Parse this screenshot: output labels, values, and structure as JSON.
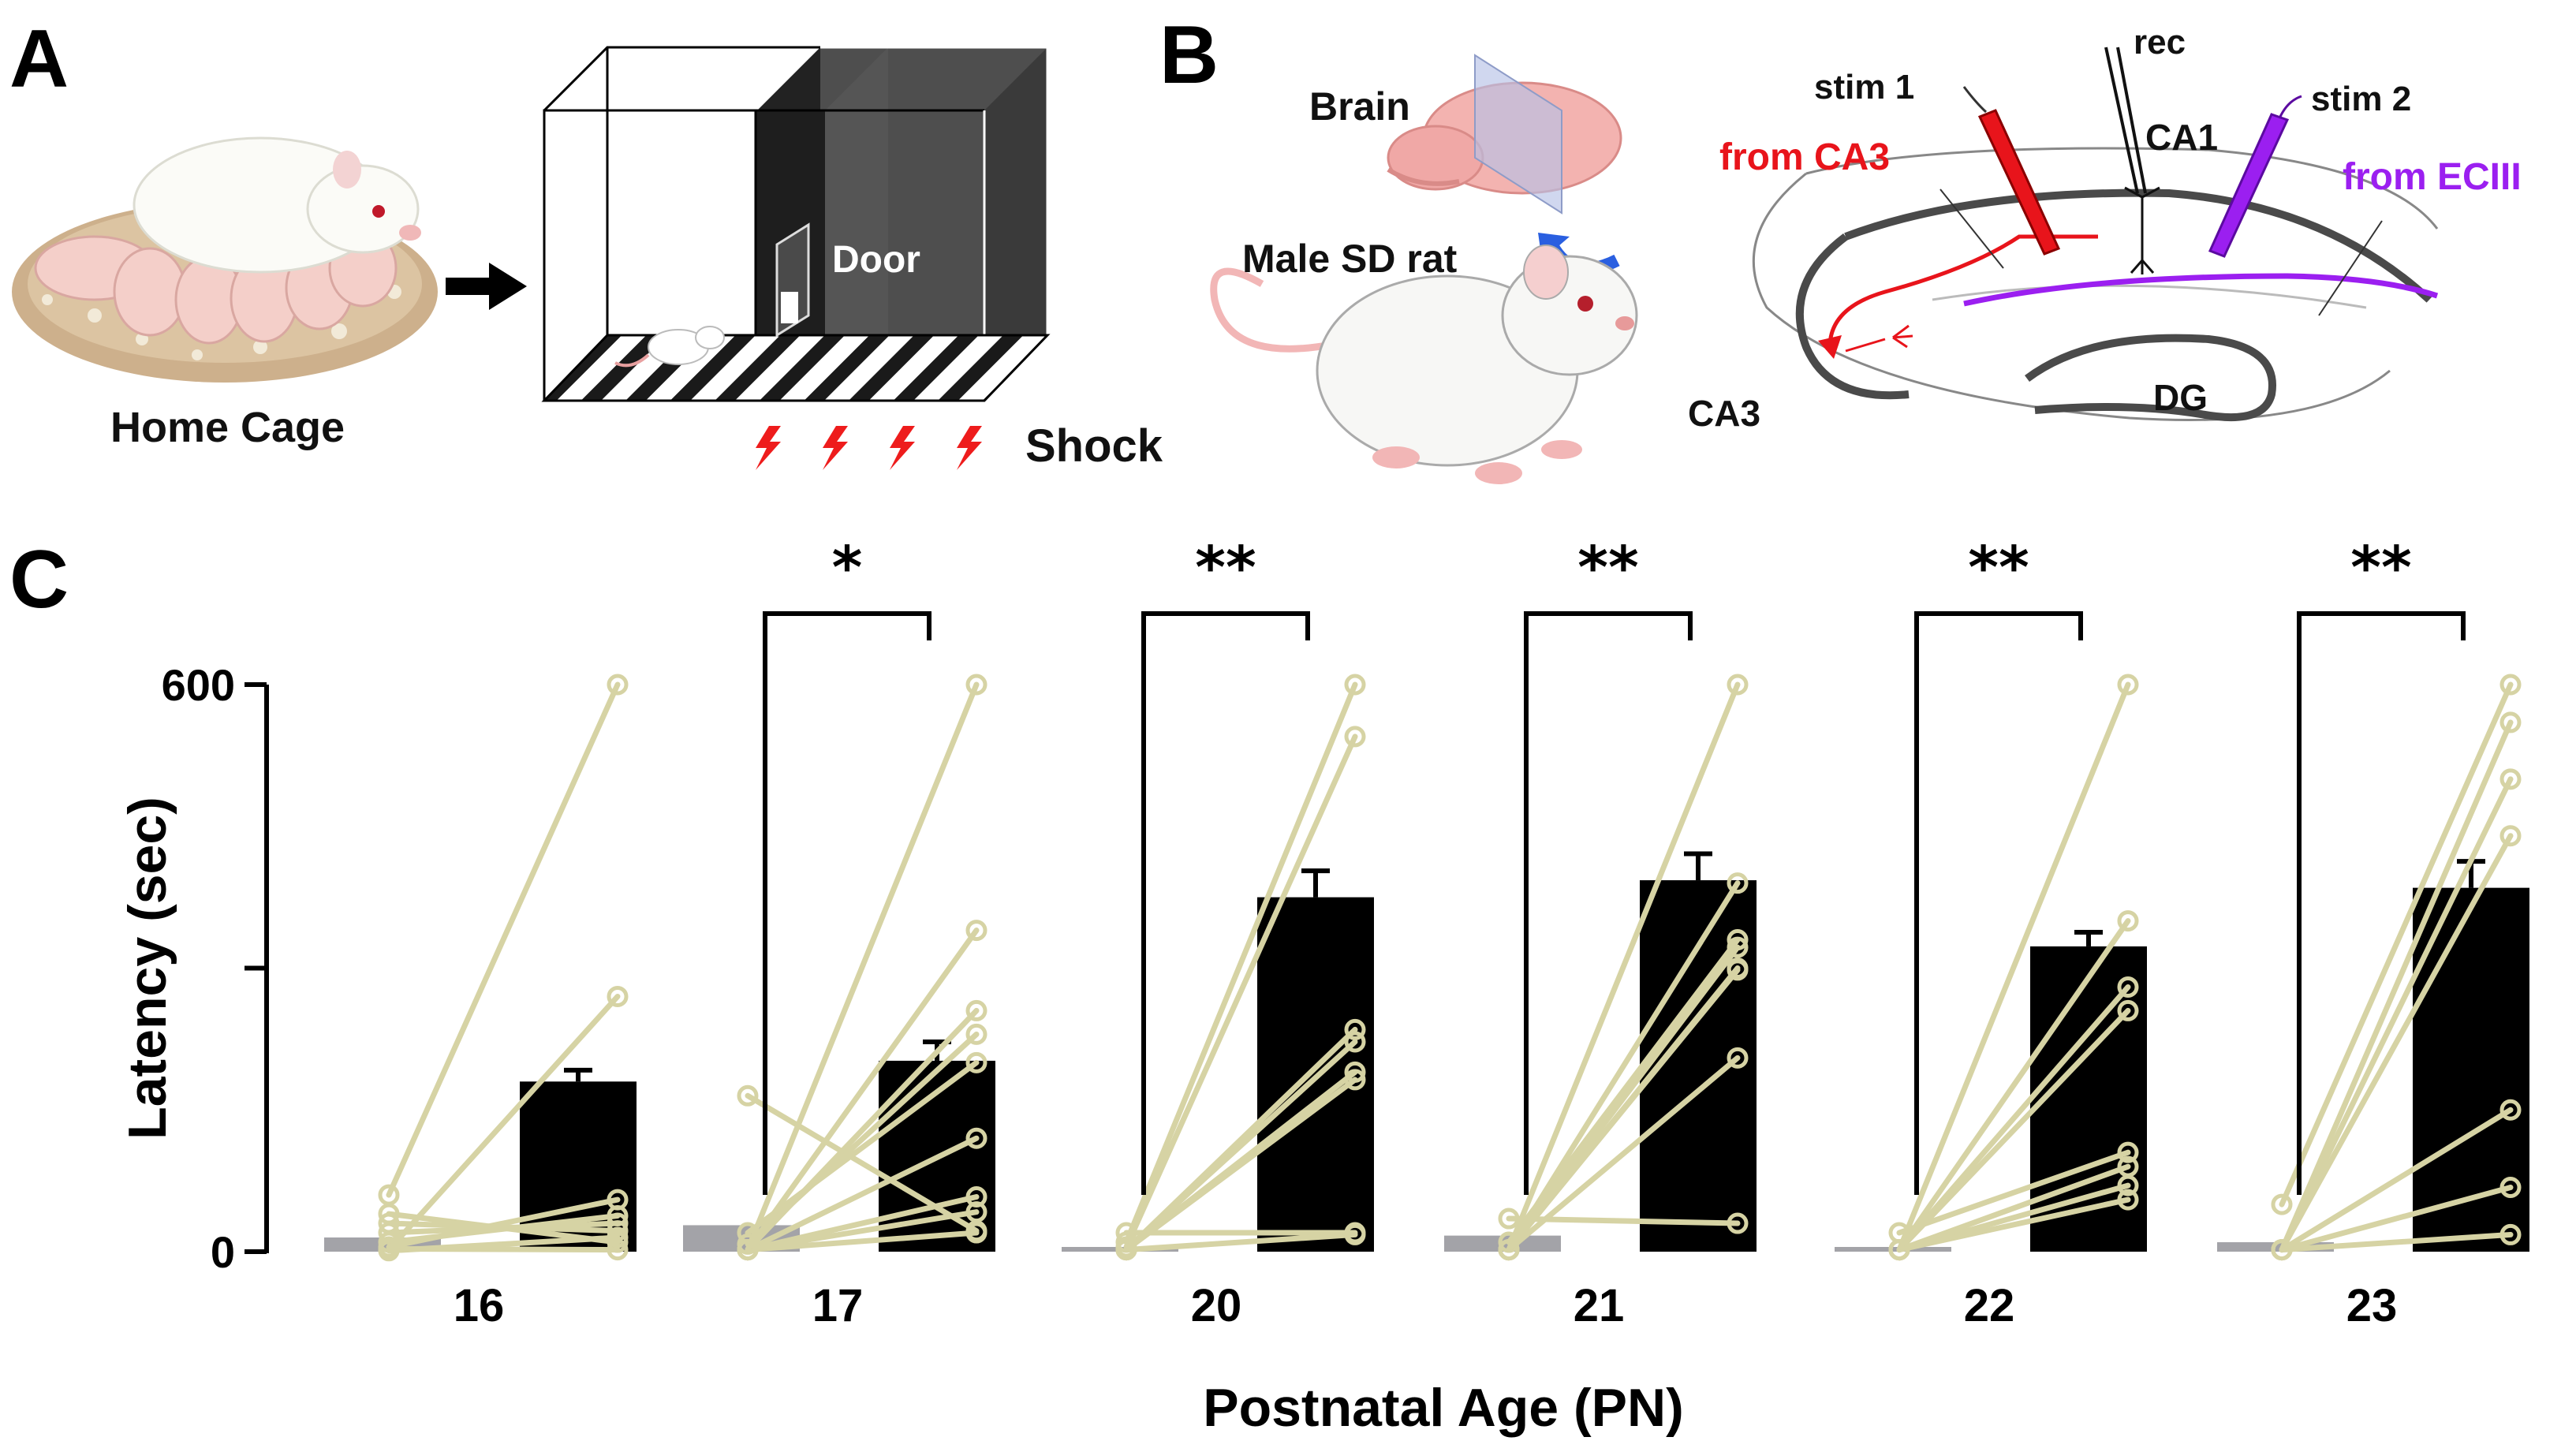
{
  "panels": {
    "a": {
      "letter": "A",
      "home_cage_label": "Home Cage",
      "door_label": "Door",
      "shock_label": "Shock"
    },
    "b": {
      "letter": "B",
      "brain_label": "Brain",
      "rat_label": "Male SD rat",
      "stim1_label": "stim 1",
      "rec_label": "rec",
      "stim2_label": "stim 2",
      "ca1_label": "CA1",
      "ca3_label": "CA3",
      "dg_label": "DG",
      "from_ca3_label": "from CA3",
      "from_eciii_label": "from ECIII"
    },
    "c": {
      "letter": "C"
    }
  },
  "colors": {
    "pathway_ca3": "#e8141b",
    "pathway_eciii": "#9b1ff0",
    "bar_after": "#000000",
    "bar_before": "#a3a3a8",
    "individual_lines": "#d6d3a4",
    "hippocampus_outline": "#4a4a4a"
  },
  "chart_data": {
    "type": "bar",
    "title": "",
    "xlabel": "Postnatal Age (PN)",
    "ylabel": "Latency (sec)",
    "ylim": [
      0,
      600
    ],
    "yticks": [
      0,
      300,
      600
    ],
    "ytick_labels": [
      "0",
      "",
      "600"
    ],
    "categories": [
      "16",
      "17",
      "20",
      "21",
      "22",
      "23"
    ],
    "significance": [
      "",
      "*",
      "**",
      "**",
      "**",
      "**"
    ],
    "series": [
      {
        "name": "before",
        "values": [
          15,
          28,
          5,
          17,
          5,
          10
        ]
      },
      {
        "name": "after",
        "values": [
          180,
          202,
          375,
          393,
          323,
          385
        ]
      }
    ],
    "error_bars_after": [
      12,
      20,
      28,
      28,
      15,
      28
    ],
    "paired_individuals": [
      [
        [
          1,
          15
        ],
        [
          5,
          55
        ],
        [
          30,
          22
        ],
        [
          40,
          10
        ],
        [
          10,
          38
        ],
        [
          20,
          30
        ],
        [
          60,
          600
        ],
        [
          2,
          270
        ],
        [
          3,
          2
        ]
      ],
      [
        [
          165,
          22
        ],
        [
          20,
          200
        ],
        [
          8,
          230
        ],
        [
          2,
          120
        ],
        [
          2,
          58
        ],
        [
          2,
          42
        ],
        [
          2,
          20
        ],
        [
          2,
          255
        ],
        [
          2,
          340
        ],
        [
          2,
          600
        ]
      ],
      [
        [
          20,
          20
        ],
        [
          10,
          600
        ],
        [
          5,
          545
        ],
        [
          2,
          235
        ],
        [
          2,
          222
        ],
        [
          2,
          190
        ],
        [
          2,
          182
        ],
        [
          2,
          18
        ]
      ],
      [
        [
          2,
          600
        ],
        [
          35,
          30
        ],
        [
          10,
          330
        ],
        [
          2,
          390
        ],
        [
          2,
          205
        ],
        [
          2,
          298
        ],
        [
          2,
          300
        ],
        [
          2,
          322
        ]
      ],
      [
        [
          20,
          105
        ],
        [
          2,
          600
        ],
        [
          2,
          350
        ],
        [
          2,
          255
        ],
        [
          2,
          280
        ],
        [
          2,
          90
        ],
        [
          2,
          70
        ],
        [
          2,
          55
        ]
      ],
      [
        [
          50,
          600
        ],
        [
          2,
          560
        ],
        [
          2,
          500
        ],
        [
          2,
          150
        ],
        [
          2,
          68
        ],
        [
          2,
          18
        ],
        [
          2,
          440
        ]
      ]
    ]
  }
}
